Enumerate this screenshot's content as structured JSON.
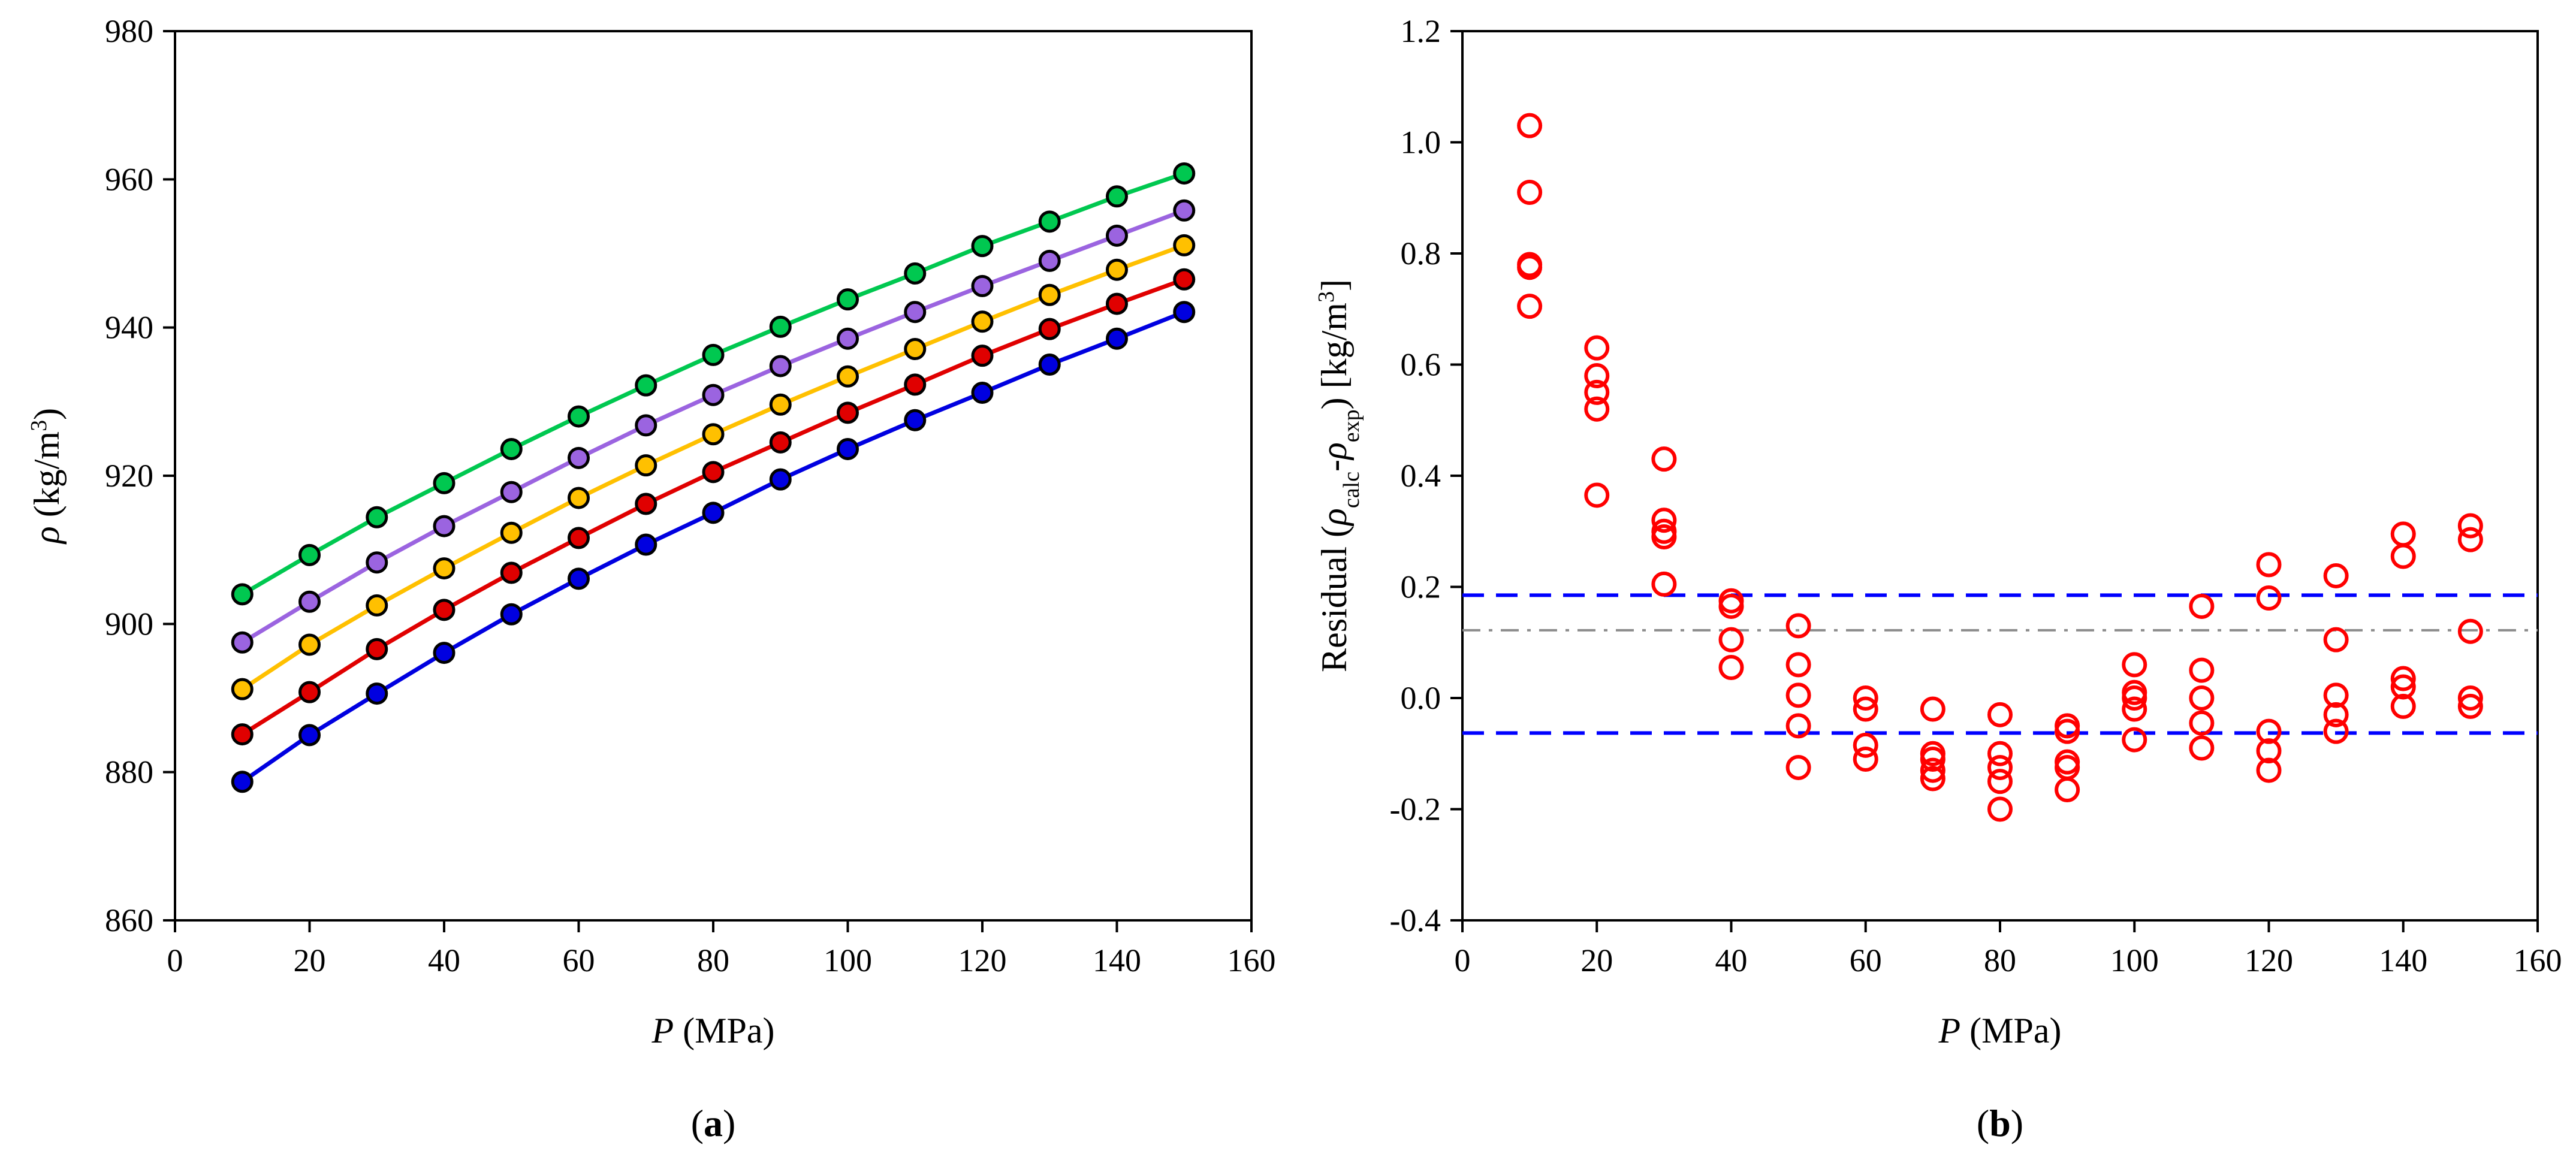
{
  "chart_data": [
    {
      "panel": "a",
      "type": "line",
      "panel_label": "(a)",
      "xlabel": "P (MPa)",
      "ylabel": "ρ (kg/m³)",
      "xlim": [
        0,
        160
      ],
      "ylim": [
        860,
        980
      ],
      "xticks": [
        0,
        20,
        40,
        60,
        80,
        100,
        120,
        140,
        160
      ],
      "yticks": [
        860,
        880,
        900,
        920,
        940,
        960,
        980
      ],
      "x": [
        10,
        20,
        30,
        40,
        50,
        60,
        70,
        80,
        90,
        100,
        110,
        120,
        130,
        140,
        150
      ],
      "series": [
        {
          "name": "series-green",
          "color": "#00c850",
          "values": [
            904.0,
            909.3,
            914.4,
            919.0,
            923.6,
            928.0,
            932.2,
            936.3,
            940.1,
            943.8,
            947.3,
            951.0,
            954.3,
            957.7,
            960.8
          ]
        },
        {
          "name": "series-purple",
          "color": "#9b64e0",
          "values": [
            897.5,
            903.0,
            908.3,
            913.2,
            917.8,
            922.4,
            926.8,
            930.9,
            934.8,
            938.5,
            942.1,
            945.6,
            949.0,
            952.4,
            955.8
          ]
        },
        {
          "name": "series-orange",
          "color": "#ffc000",
          "values": [
            891.2,
            897.2,
            902.5,
            907.5,
            912.3,
            917.0,
            921.4,
            925.6,
            929.6,
            933.4,
            937.1,
            940.8,
            944.4,
            947.8,
            951.1
          ]
        },
        {
          "name": "series-red",
          "color": "#e00000",
          "values": [
            885.1,
            890.8,
            896.6,
            901.9,
            906.9,
            911.6,
            916.2,
            920.5,
            924.5,
            928.5,
            932.3,
            936.2,
            939.8,
            943.2,
            946.5
          ]
        },
        {
          "name": "series-blue",
          "color": "#0000e0",
          "values": [
            878.7,
            885.0,
            890.6,
            896.1,
            901.3,
            906.1,
            910.7,
            915.0,
            919.5,
            923.6,
            927.5,
            931.2,
            935.0,
            938.5,
            942.1
          ]
        }
      ]
    },
    {
      "panel": "b",
      "type": "scatter",
      "panel_label": "(b)",
      "xlabel": "P (MPa)",
      "ylabel": "Residual (ρcalc-ρexp) [kg/m³]",
      "xlim": [
        0,
        160
      ],
      "ylim": [
        -0.4,
        1.2
      ],
      "xticks": [
        0,
        20,
        40,
        60,
        80,
        100,
        120,
        140,
        160
      ],
      "yticks": [
        "-0.4",
        "-0.2",
        "0.0",
        "0.2",
        "0.4",
        "0.6",
        "0.8",
        "1.0",
        "1.2"
      ],
      "marker_color": "#ff0000",
      "points": [
        [
          10,
          1.03
        ],
        [
          10,
          0.91
        ],
        [
          10,
          0.78
        ],
        [
          10,
          0.775
        ],
        [
          10,
          0.705
        ],
        [
          20,
          0.63
        ],
        [
          20,
          0.58
        ],
        [
          20,
          0.55
        ],
        [
          20,
          0.52
        ],
        [
          20,
          0.365
        ],
        [
          30,
          0.43
        ],
        [
          30,
          0.32
        ],
        [
          30,
          0.3
        ],
        [
          30,
          0.29
        ],
        [
          30,
          0.205
        ],
        [
          40,
          0.175
        ],
        [
          40,
          0.165
        ],
        [
          40,
          0.105
        ],
        [
          40,
          0.055
        ],
        [
          50,
          0.13
        ],
        [
          50,
          0.06
        ],
        [
          50,
          0.005
        ],
        [
          50,
          -0.05
        ],
        [
          50,
          -0.125
        ],
        [
          60,
          0.0
        ],
        [
          60,
          -0.02
        ],
        [
          60,
          -0.085
        ],
        [
          60,
          -0.11
        ],
        [
          70,
          -0.02
        ],
        [
          70,
          -0.1
        ],
        [
          70,
          -0.11
        ],
        [
          70,
          -0.13
        ],
        [
          70,
          -0.145
        ],
        [
          80,
          -0.03
        ],
        [
          80,
          -0.1
        ],
        [
          80,
          -0.125
        ],
        [
          80,
          -0.15
        ],
        [
          80,
          -0.2
        ],
        [
          90,
          -0.05
        ],
        [
          90,
          -0.06
        ],
        [
          90,
          -0.115
        ],
        [
          90,
          -0.125
        ],
        [
          90,
          -0.165
        ],
        [
          100,
          0.06
        ],
        [
          100,
          0.01
        ],
        [
          100,
          0.0
        ],
        [
          100,
          -0.02
        ],
        [
          100,
          -0.075
        ],
        [
          110,
          0.165
        ],
        [
          110,
          0.05
        ],
        [
          110,
          0.0
        ],
        [
          110,
          -0.045
        ],
        [
          110,
          -0.09
        ],
        [
          120,
          0.24
        ],
        [
          120,
          0.18
        ],
        [
          120,
          -0.06
        ],
        [
          120,
          -0.095
        ],
        [
          120,
          -0.13
        ],
        [
          130,
          0.22
        ],
        [
          130,
          0.105
        ],
        [
          130,
          0.005
        ],
        [
          130,
          -0.03
        ],
        [
          130,
          -0.06
        ],
        [
          140,
          0.295
        ],
        [
          140,
          0.255
        ],
        [
          140,
          0.035
        ],
        [
          140,
          0.02
        ],
        [
          140,
          -0.015
        ],
        [
          150,
          0.31
        ],
        [
          150,
          0.285
        ],
        [
          150,
          0.12
        ],
        [
          150,
          0.0
        ],
        [
          150,
          -0.015
        ]
      ],
      "reference_lines": [
        {
          "name": "upper-bound-line",
          "y": 0.185,
          "style": "dashed",
          "color": "#0000ff"
        },
        {
          "name": "mean-line",
          "y": 0.122,
          "style": "dash-dot",
          "color": "#8c8c8c"
        },
        {
          "name": "lower-bound-line",
          "y": -0.063,
          "style": "dashed",
          "color": "#0000ff"
        }
      ]
    }
  ]
}
